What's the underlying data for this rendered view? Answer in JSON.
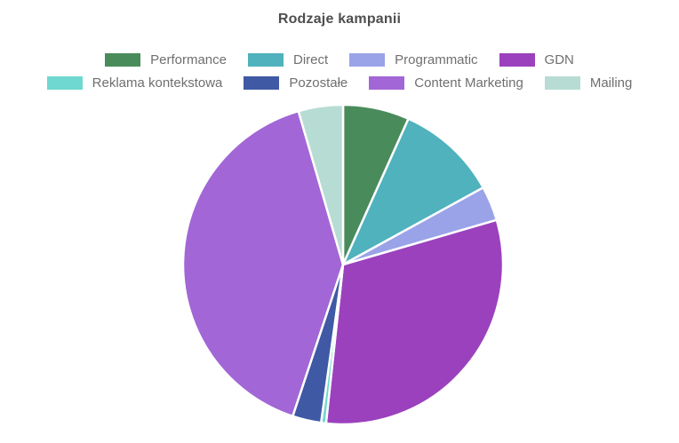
{
  "chart_data": {
    "type": "pie",
    "title": "Rodzaje kampanii",
    "legend_position": "top",
    "direction": "clockwise",
    "start_angle_deg": 0,
    "series": [
      {
        "label": "Performance",
        "value": 6.7,
        "color": "#4a8b5c"
      },
      {
        "label": "Direct",
        "value": 10.3,
        "color": "#4fb2bd"
      },
      {
        "label": "Programmatic",
        "value": 3.5,
        "color": "#9aa3e8"
      },
      {
        "label": "GDN",
        "value": 31.2,
        "color": "#9b41bd"
      },
      {
        "label": "Reklama kontekstowa",
        "value": 0.5,
        "color": "#6fd8d0"
      },
      {
        "label": "Pozostałe",
        "value": 2.9,
        "color": "#3f59a4"
      },
      {
        "label": "Content Marketing",
        "value": 40.4,
        "color": "#a266d6"
      },
      {
        "label": "Mailing",
        "value": 4.5,
        "color": "#b7dcd3"
      }
    ],
    "style": {
      "background": "#ffffff",
      "title_color": "#4e4e4e",
      "legend_text_color": "#6f6f6f",
      "slice_border_color": "#ffffff"
    },
    "geometry": {
      "center_x": 386,
      "center_y": 298,
      "radius": 180,
      "slice_border_width": 2.5
    }
  }
}
